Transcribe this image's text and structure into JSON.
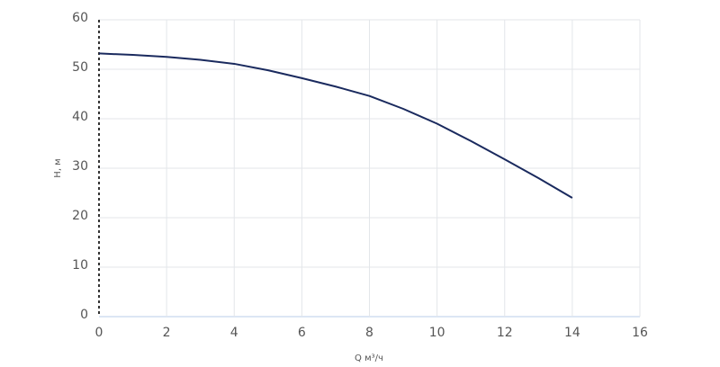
{
  "chart_data": {
    "type": "line",
    "x_label": "Q м³/ч",
    "y_label": "H, м",
    "x": [
      0,
      1,
      2,
      3,
      4,
      5,
      6,
      7,
      8,
      9,
      10,
      11,
      12,
      13,
      14
    ],
    "series": [
      {
        "color": "#1a2a5e",
        "values": [
          53.2,
          52.9,
          52.5,
          51.9,
          51.1,
          49.8,
          48.2,
          46.5,
          44.6,
          42.0,
          39.0,
          35.5,
          31.8,
          28.0,
          24.0
        ]
      }
    ],
    "xlim": [
      0,
      16
    ],
    "xticks": [
      0,
      2,
      4,
      6,
      8,
      10,
      12,
      14,
      16
    ],
    "ylim": [
      0,
      60
    ],
    "yticks": [
      0,
      10,
      20,
      30,
      40,
      50,
      60
    ],
    "grid": true
  }
}
